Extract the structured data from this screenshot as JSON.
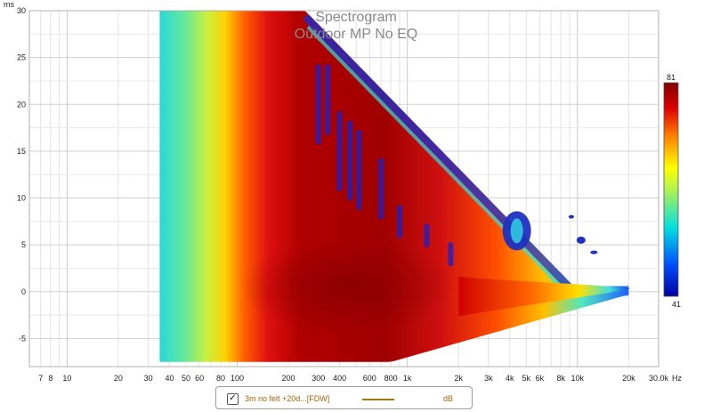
{
  "chart_data": {
    "type": "heatmap",
    "title": "Spectrogram",
    "subtitle": "Outdoor MP No EQ",
    "ylabel": "ms",
    "xlabel": "Hz",
    "x_scale": "log",
    "xlim": [
      6,
      30000
    ],
    "ylim": [
      -8,
      30
    ],
    "x_ticks": [
      "7",
      "8",
      "10",
      "20",
      "30",
      "40",
      "50",
      "60",
      "80",
      "100",
      "200",
      "300",
      "400",
      "600",
      "800",
      "1k",
      "2k",
      "3k",
      "4k",
      "5k",
      "6k",
      "8k",
      "10k",
      "20k",
      "30.0k"
    ],
    "x_tick_values": [
      7,
      8,
      10,
      20,
      30,
      40,
      50,
      60,
      80,
      100,
      200,
      300,
      400,
      600,
      800,
      1000,
      2000,
      3000,
      4000,
      5000,
      6000,
      8000,
      10000,
      20000,
      30000
    ],
    "y_ticks": [
      "-5",
      "0",
      "5",
      "10",
      "15",
      "20",
      "25",
      "30"
    ],
    "y_tick_values": [
      -5,
      0,
      5,
      10,
      15,
      20,
      25,
      30
    ],
    "colorbar": {
      "min": 41,
      "max": 81,
      "min_label": "41",
      "max_label": "81"
    },
    "grid": true,
    "spectrogram_extent": {
      "freq_start_hz": 35,
      "freq_end_hz": 20000,
      "time_bottom_ms": -7.5,
      "time_top_ms": 30
    }
  },
  "legend": {
    "checked": true,
    "check_glyph": "✓",
    "series_name": "3m no felt +20d...[FDW]",
    "unit": "dB",
    "line_color": "#a07a10"
  }
}
